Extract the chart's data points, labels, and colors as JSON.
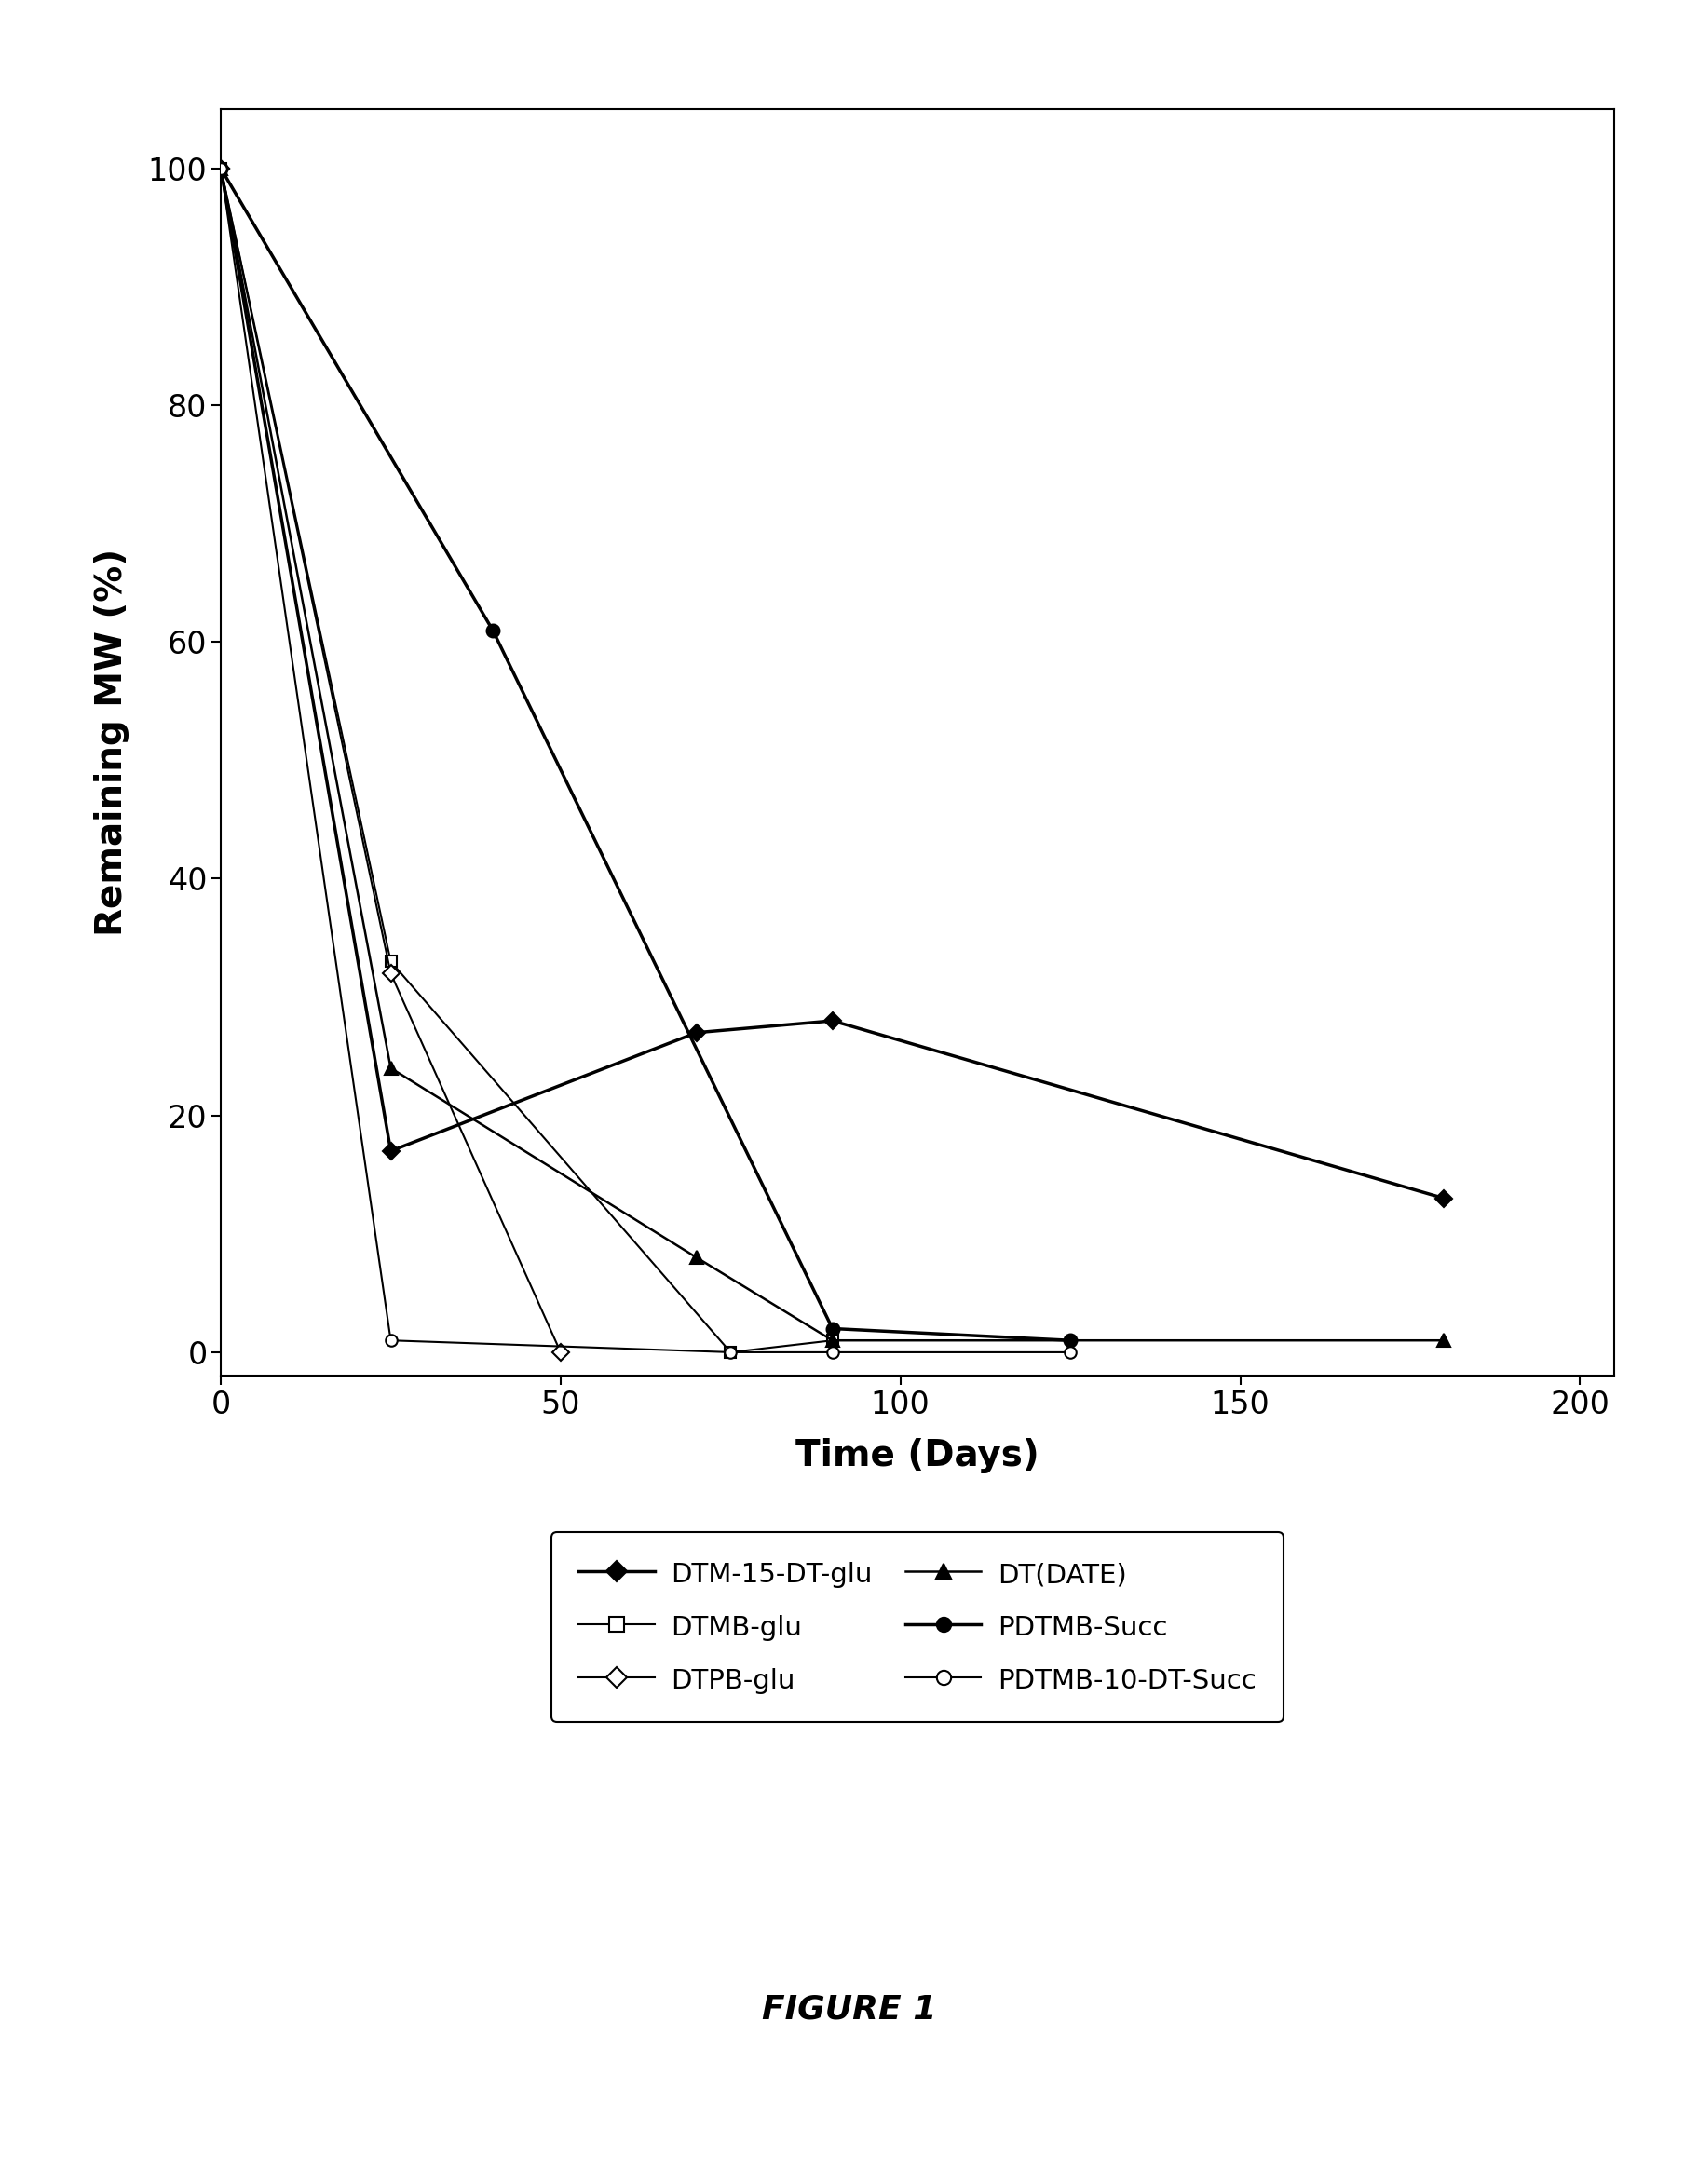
{
  "title": "",
  "xlabel": "Time (Days)",
  "ylabel": "Remaining MW (%)",
  "xlim": [
    0,
    205
  ],
  "ylim": [
    -2,
    105
  ],
  "xticks": [
    0,
    50,
    100,
    150,
    200
  ],
  "yticks": [
    0,
    20,
    40,
    60,
    80,
    100
  ],
  "series": [
    {
      "label": "DTM-15-DT-glu",
      "x": [
        0,
        25,
        70,
        90,
        180
      ],
      "y": [
        100,
        17,
        27,
        28,
        13
      ],
      "color": "black",
      "marker": "D",
      "markersize": 9,
      "markerfacecolor": "black",
      "linewidth": 2.5,
      "linestyle": "-"
    },
    {
      "label": "DTMB-glu",
      "x": [
        0,
        25,
        75,
        90
      ],
      "y": [
        100,
        33,
        0,
        1
      ],
      "color": "black",
      "marker": "s",
      "markersize": 9,
      "markerfacecolor": "white",
      "linewidth": 1.5,
      "linestyle": "-"
    },
    {
      "label": "DTPB-glu",
      "x": [
        0,
        25,
        50
      ],
      "y": [
        100,
        32,
        0
      ],
      "color": "black",
      "marker": "D",
      "markersize": 9,
      "markerfacecolor": "white",
      "linewidth": 1.5,
      "linestyle": "-"
    },
    {
      "label": "DT(DATE)",
      "x": [
        0,
        25,
        70,
        90,
        180
      ],
      "y": [
        100,
        24,
        8,
        1,
        1
      ],
      "color": "black",
      "marker": "^",
      "markersize": 10,
      "markerfacecolor": "black",
      "linewidth": 1.8,
      "linestyle": "-"
    },
    {
      "label": "PDTMB-Succ",
      "x": [
        0,
        40,
        90,
        125
      ],
      "y": [
        100,
        61,
        2,
        1
      ],
      "color": "black",
      "marker": "o",
      "markersize": 10,
      "markerfacecolor": "black",
      "linewidth": 2.5,
      "linestyle": "-"
    },
    {
      "label": "PDTMB-10-DT-Succ",
      "x": [
        0,
        25,
        75,
        90,
        125
      ],
      "y": [
        100,
        1,
        0,
        0,
        0
      ],
      "color": "black",
      "marker": "o",
      "markersize": 9,
      "markerfacecolor": "white",
      "linewidth": 1.5,
      "linestyle": "-"
    }
  ],
  "background_color": "white",
  "figure_label": "FIGURE 1",
  "legend_col1_indices": [
    0,
    2,
    4
  ],
  "legend_col2_indices": [
    1,
    3,
    5
  ]
}
